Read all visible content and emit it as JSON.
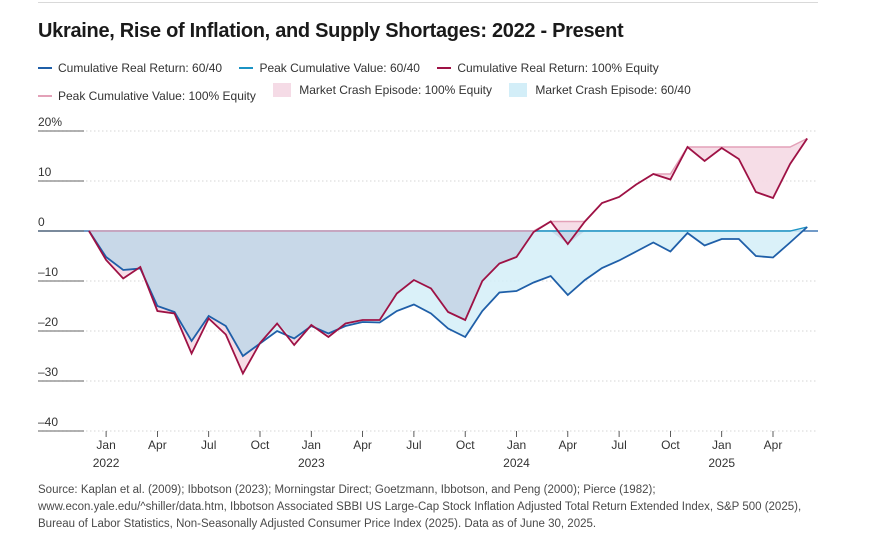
{
  "title": "Ukraine, Rise of Inflation, and Supply Shortages: 2022 - Present",
  "legend": [
    {
      "label": "Cumulative Real Return: 60/40",
      "kind": "line",
      "color": "#1f5fa8"
    },
    {
      "label": "Peak Cumulative Value: 60/40",
      "kind": "line",
      "color": "#1b93c4"
    },
    {
      "label": "Cumulative Real Return: 100% Equity",
      "kind": "line",
      "color": "#9e1245"
    },
    {
      "label": "Peak Cumulative Value:  100% Equity",
      "kind": "line",
      "color": "#e3a1b8"
    },
    {
      "label": "Market Crash Episode: 100% Equity",
      "kind": "box",
      "color": "#f5dbe6"
    },
    {
      "label": "Market Crash Episode: 60/40",
      "kind": "box",
      "color": "#d3eef8"
    }
  ],
  "source": "Source: Kaplan et al. (2009); Ibbotson (2023); Morningstar Direct; Goetzmann, Ibbotson, and Peng (2000); Pierce (1982); www.econ.yale.edu/^shiller/data.htm, Ibbotson Associated SBBI US Large-Cap Stock Inflation Adjusted Total Return Extended Index, S&P 500 (2025), Bureau of Labor Statistics, Non-Seasonally Adjusted Consumer Price Index (2025). Data as of June 30, 2025.",
  "chart_data": {
    "type": "line",
    "ylim": [
      -40,
      20
    ],
    "y_ticks": [
      {
        "value": 20,
        "label": "20%"
      },
      {
        "value": 10,
        "label": "10"
      },
      {
        "value": 0,
        "label": "0"
      },
      {
        "value": -10,
        "label": "–10"
      },
      {
        "value": -20,
        "label": "–20"
      },
      {
        "value": -30,
        "label": "–30"
      },
      {
        "value": -40,
        "label": "–40"
      }
    ],
    "x_ticks": [
      {
        "index": 0,
        "month": "Jan",
        "year": "2022"
      },
      {
        "index": 3,
        "month": "Apr",
        "year": ""
      },
      {
        "index": 6,
        "month": "Jul",
        "year": ""
      },
      {
        "index": 9,
        "month": "Oct",
        "year": ""
      },
      {
        "index": 12,
        "month": "Jan",
        "year": "2023"
      },
      {
        "index": 15,
        "month": "Apr",
        "year": ""
      },
      {
        "index": 18,
        "month": "Jul",
        "year": ""
      },
      {
        "index": 21,
        "month": "Oct",
        "year": ""
      },
      {
        "index": 24,
        "month": "Jan",
        "year": "2024"
      },
      {
        "index": 27,
        "month": "Apr",
        "year": ""
      },
      {
        "index": 30,
        "month": "Jul",
        "year": ""
      },
      {
        "index": 33,
        "month": "Oct",
        "year": ""
      },
      {
        "index": 36,
        "month": "Jan",
        "year": "2025"
      },
      {
        "index": 39,
        "month": "Apr",
        "year": ""
      }
    ],
    "x": [
      "Dec 2021",
      "Jan 2022",
      "Feb 2022",
      "Mar 2022",
      "Apr 2022",
      "May 2022",
      "Jun 2022",
      "Jul 2022",
      "Aug 2022",
      "Sep 2022",
      "Oct 2022",
      "Nov 2022",
      "Dec 2022",
      "Jan 2023",
      "Feb 2023",
      "Mar 2023",
      "Apr 2023",
      "May 2023",
      "Jun 2023",
      "Jul 2023",
      "Aug 2023",
      "Sep 2023",
      "Oct 2023",
      "Nov 2023",
      "Dec 2023",
      "Jan 2024",
      "Feb 2024",
      "Mar 2024",
      "Apr 2024",
      "May 2024",
      "Jun 2024",
      "Jul 2024",
      "Aug 2024",
      "Sep 2024",
      "Oct 2024",
      "Nov 2024",
      "Dec 2024",
      "Jan 2025",
      "Feb 2025",
      "Mar 2025",
      "Apr 2025",
      "May 2025",
      "Jun 2025"
    ],
    "series": [
      {
        "name": "Cumulative Real Return: 60/40",
        "color": "#1f5fa8",
        "values": [
          0,
          -5.2,
          -7.8,
          -7.5,
          -15,
          -16.2,
          -22,
          -17,
          -19,
          -25,
          -22.5,
          -20,
          -21.5,
          -19,
          -20.5,
          -19,
          -18.2,
          -18.3,
          -16,
          -14.7,
          -16.5,
          -19.5,
          -21.2,
          -16,
          -12.3,
          -12,
          -10.3,
          -9,
          -12.8,
          -9.8,
          -7.4,
          -5.9,
          -4.1,
          -2.3,
          -4.1,
          -0.4,
          -2.9,
          -1.6,
          -1.6,
          -5,
          -5.3,
          -2.3,
          0.8
        ]
      },
      {
        "name": "Peak Cumulative Value: 60/40",
        "color": "#1b93c4",
        "values": [
          0,
          0,
          0,
          0,
          0,
          0,
          0,
          0,
          0,
          0,
          0,
          0,
          0,
          0,
          0,
          0,
          0,
          0,
          0,
          0,
          0,
          0,
          0,
          0,
          0,
          0,
          0,
          0,
          0,
          0,
          0,
          0,
          0,
          0,
          0,
          0,
          0,
          0,
          0,
          0,
          0,
          0,
          0.8
        ]
      },
      {
        "name": "Cumulative Real Return: 100% Equity",
        "color": "#9e1245",
        "values": [
          0,
          -5.8,
          -9.5,
          -7.2,
          -16,
          -16.5,
          -24.5,
          -17.5,
          -20.7,
          -28.5,
          -22.4,
          -18.5,
          -22.8,
          -18.8,
          -21.2,
          -18.5,
          -17.8,
          -17.8,
          -12.5,
          -9.8,
          -11.5,
          -16.2,
          -17.8,
          -10,
          -6.5,
          -5.2,
          -0.2,
          1.9,
          -2.6,
          1.9,
          5.6,
          6.8,
          9.3,
          11.4,
          10.3,
          16.8,
          14,
          16.6,
          14.4,
          7.8,
          6.6,
          13.4,
          18.5
        ]
      },
      {
        "name": "Peak Cumulative Value:  100% Equity",
        "color": "#e3a1b8",
        "values": [
          0,
          0,
          0,
          0,
          0,
          0,
          0,
          0,
          0,
          0,
          0,
          0,
          0,
          0,
          0,
          0,
          0,
          0,
          0,
          0,
          0,
          0,
          0,
          0,
          0,
          0,
          0,
          1.9,
          1.9,
          1.9,
          5.6,
          6.8,
          9.3,
          11.4,
          11.4,
          16.8,
          16.8,
          16.8,
          16.8,
          16.8,
          16.8,
          16.8,
          18.5
        ]
      }
    ]
  }
}
